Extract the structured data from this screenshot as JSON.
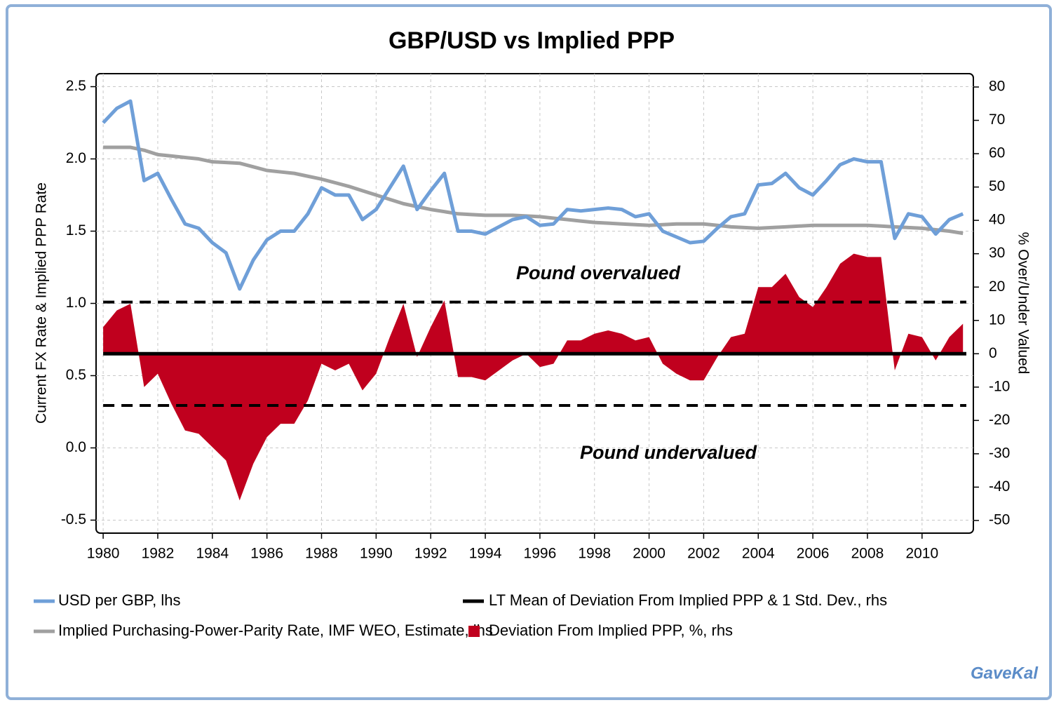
{
  "chart_data": {
    "type": "line",
    "title": "GBP/USD vs Implied PPP",
    "y_label": "Current FX Rate & Implied PPP Rate",
    "y2_label": "% Over/Under Valued",
    "annotations": [
      "Pound overvalued",
      "Pound undervalued"
    ],
    "source": "GaveKal",
    "x": [
      1980,
      1980.5,
      1981,
      1981.5,
      1982,
      1982.5,
      1983,
      1983.5,
      1984,
      1984.5,
      1985,
      1985.5,
      1986,
      1986.5,
      1987,
      1987.5,
      1988,
      1988.5,
      1989,
      1989.5,
      1990,
      1990.5,
      1991,
      1991.5,
      1992,
      1992.5,
      1993,
      1993.5,
      1994,
      1994.5,
      1995,
      1995.5,
      1996,
      1996.5,
      1997,
      1997.5,
      1998,
      1998.5,
      1999,
      1999.5,
      2000,
      2000.5,
      2001,
      2001.5,
      2002,
      2002.5,
      2003,
      2003.5,
      2004,
      2004.5,
      2005,
      2005.5,
      2006,
      2006.5,
      2007,
      2007.5,
      2008,
      2008.5,
      2009,
      2009.5,
      2010,
      2010.5,
      2011,
      2011.5
    ],
    "series": [
      {
        "name": "Deviation From Implied PPP, %, rhs",
        "type": "area",
        "axis": "y2",
        "color": "#c0001e",
        "values": [
          8,
          13,
          15,
          -10,
          -6,
          -15,
          -23,
          -24,
          -28,
          -32,
          -44,
          -33,
          -25,
          -21,
          -21,
          -14,
          -3,
          -5,
          -3,
          -11,
          -6,
          5,
          15,
          -1,
          8,
          16,
          -7,
          -7,
          -8,
          -5,
          -2,
          0,
          -4,
          -3,
          4,
          4,
          6,
          7,
          6,
          4,
          5,
          -3,
          -6,
          -8,
          -8,
          -1,
          5,
          6,
          20,
          20,
          24,
          17,
          14,
          20,
          27,
          30,
          29,
          29,
          -5,
          6,
          5,
          -2,
          5,
          9
        ]
      },
      {
        "name": "Implied Purchasing-Power-Parity Rate, IMF WEO, Estimate, lhs",
        "type": "line",
        "color": "#a0a0a0",
        "values": [
          2.08,
          2.08,
          2.08,
          2.06,
          2.03,
          2.02,
          2.01,
          2.0,
          1.98,
          1.975,
          1.97,
          1.945,
          1.92,
          1.91,
          1.9,
          1.88,
          1.86,
          1.835,
          1.81,
          1.78,
          1.75,
          1.72,
          1.69,
          1.67,
          1.65,
          1.635,
          1.62,
          1.615,
          1.61,
          1.61,
          1.61,
          1.605,
          1.6,
          1.59,
          1.58,
          1.57,
          1.56,
          1.555,
          1.55,
          1.545,
          1.54,
          1.545,
          1.55,
          1.55,
          1.55,
          1.54,
          1.53,
          1.525,
          1.52,
          1.525,
          1.53,
          1.535,
          1.54,
          1.54,
          1.54,
          1.54,
          1.54,
          1.535,
          1.53,
          1.525,
          1.52,
          1.51,
          1.5,
          1.485
        ]
      },
      {
        "name": "USD per GBP, lhs",
        "type": "line",
        "color": "#6f9fd8",
        "values": [
          2.25,
          2.35,
          2.4,
          1.85,
          1.9,
          1.72,
          1.55,
          1.52,
          1.42,
          1.35,
          1.1,
          1.3,
          1.44,
          1.5,
          1.5,
          1.62,
          1.8,
          1.75,
          1.75,
          1.58,
          1.65,
          1.8,
          1.95,
          1.65,
          1.78,
          1.9,
          1.5,
          1.5,
          1.48,
          1.53,
          1.58,
          1.6,
          1.54,
          1.55,
          1.65,
          1.64,
          1.65,
          1.66,
          1.65,
          1.6,
          1.62,
          1.5,
          1.46,
          1.42,
          1.43,
          1.52,
          1.6,
          1.62,
          1.82,
          1.83,
          1.9,
          1.8,
          1.75,
          1.85,
          1.96,
          2.0,
          1.98,
          1.98,
          1.45,
          1.62,
          1.6,
          1.48,
          1.58,
          1.62
        ]
      }
    ],
    "reference": {
      "name": "LT Mean of Deviation From Implied PPP & 1 Std. Dev., rhs",
      "color": "#000000",
      "axis": "y2",
      "values": [
        15.5,
        0,
        -15.5
      ],
      "styles": [
        "dashed",
        "solid",
        "dashed"
      ]
    },
    "legend_order": [
      2,
      1,
      0
    ],
    "xlim": [
      1979.74,
      2011.88
    ],
    "xticks": [
      1980,
      1982,
      1984,
      1986,
      1988,
      1990,
      1992,
      1994,
      1996,
      1998,
      2000,
      2002,
      2004,
      2006,
      2008,
      2010
    ],
    "ylim": [
      -0.59,
      2.59
    ],
    "yticks": [
      -0.5,
      {
        "value": 0,
        "label": "0.0"
      },
      0.5,
      {
        "value": 1,
        "label": "1.0"
      },
      1.5,
      {
        "value": 2,
        "label": "2.0"
      },
      2.5
    ],
    "y2lim": [
      -53.8,
      84
    ],
    "y2ticks": [
      -50,
      -40,
      -30,
      -20,
      -10,
      0,
      10,
      20,
      30,
      40,
      50,
      60,
      70,
      80
    ],
    "grid": true
  }
}
